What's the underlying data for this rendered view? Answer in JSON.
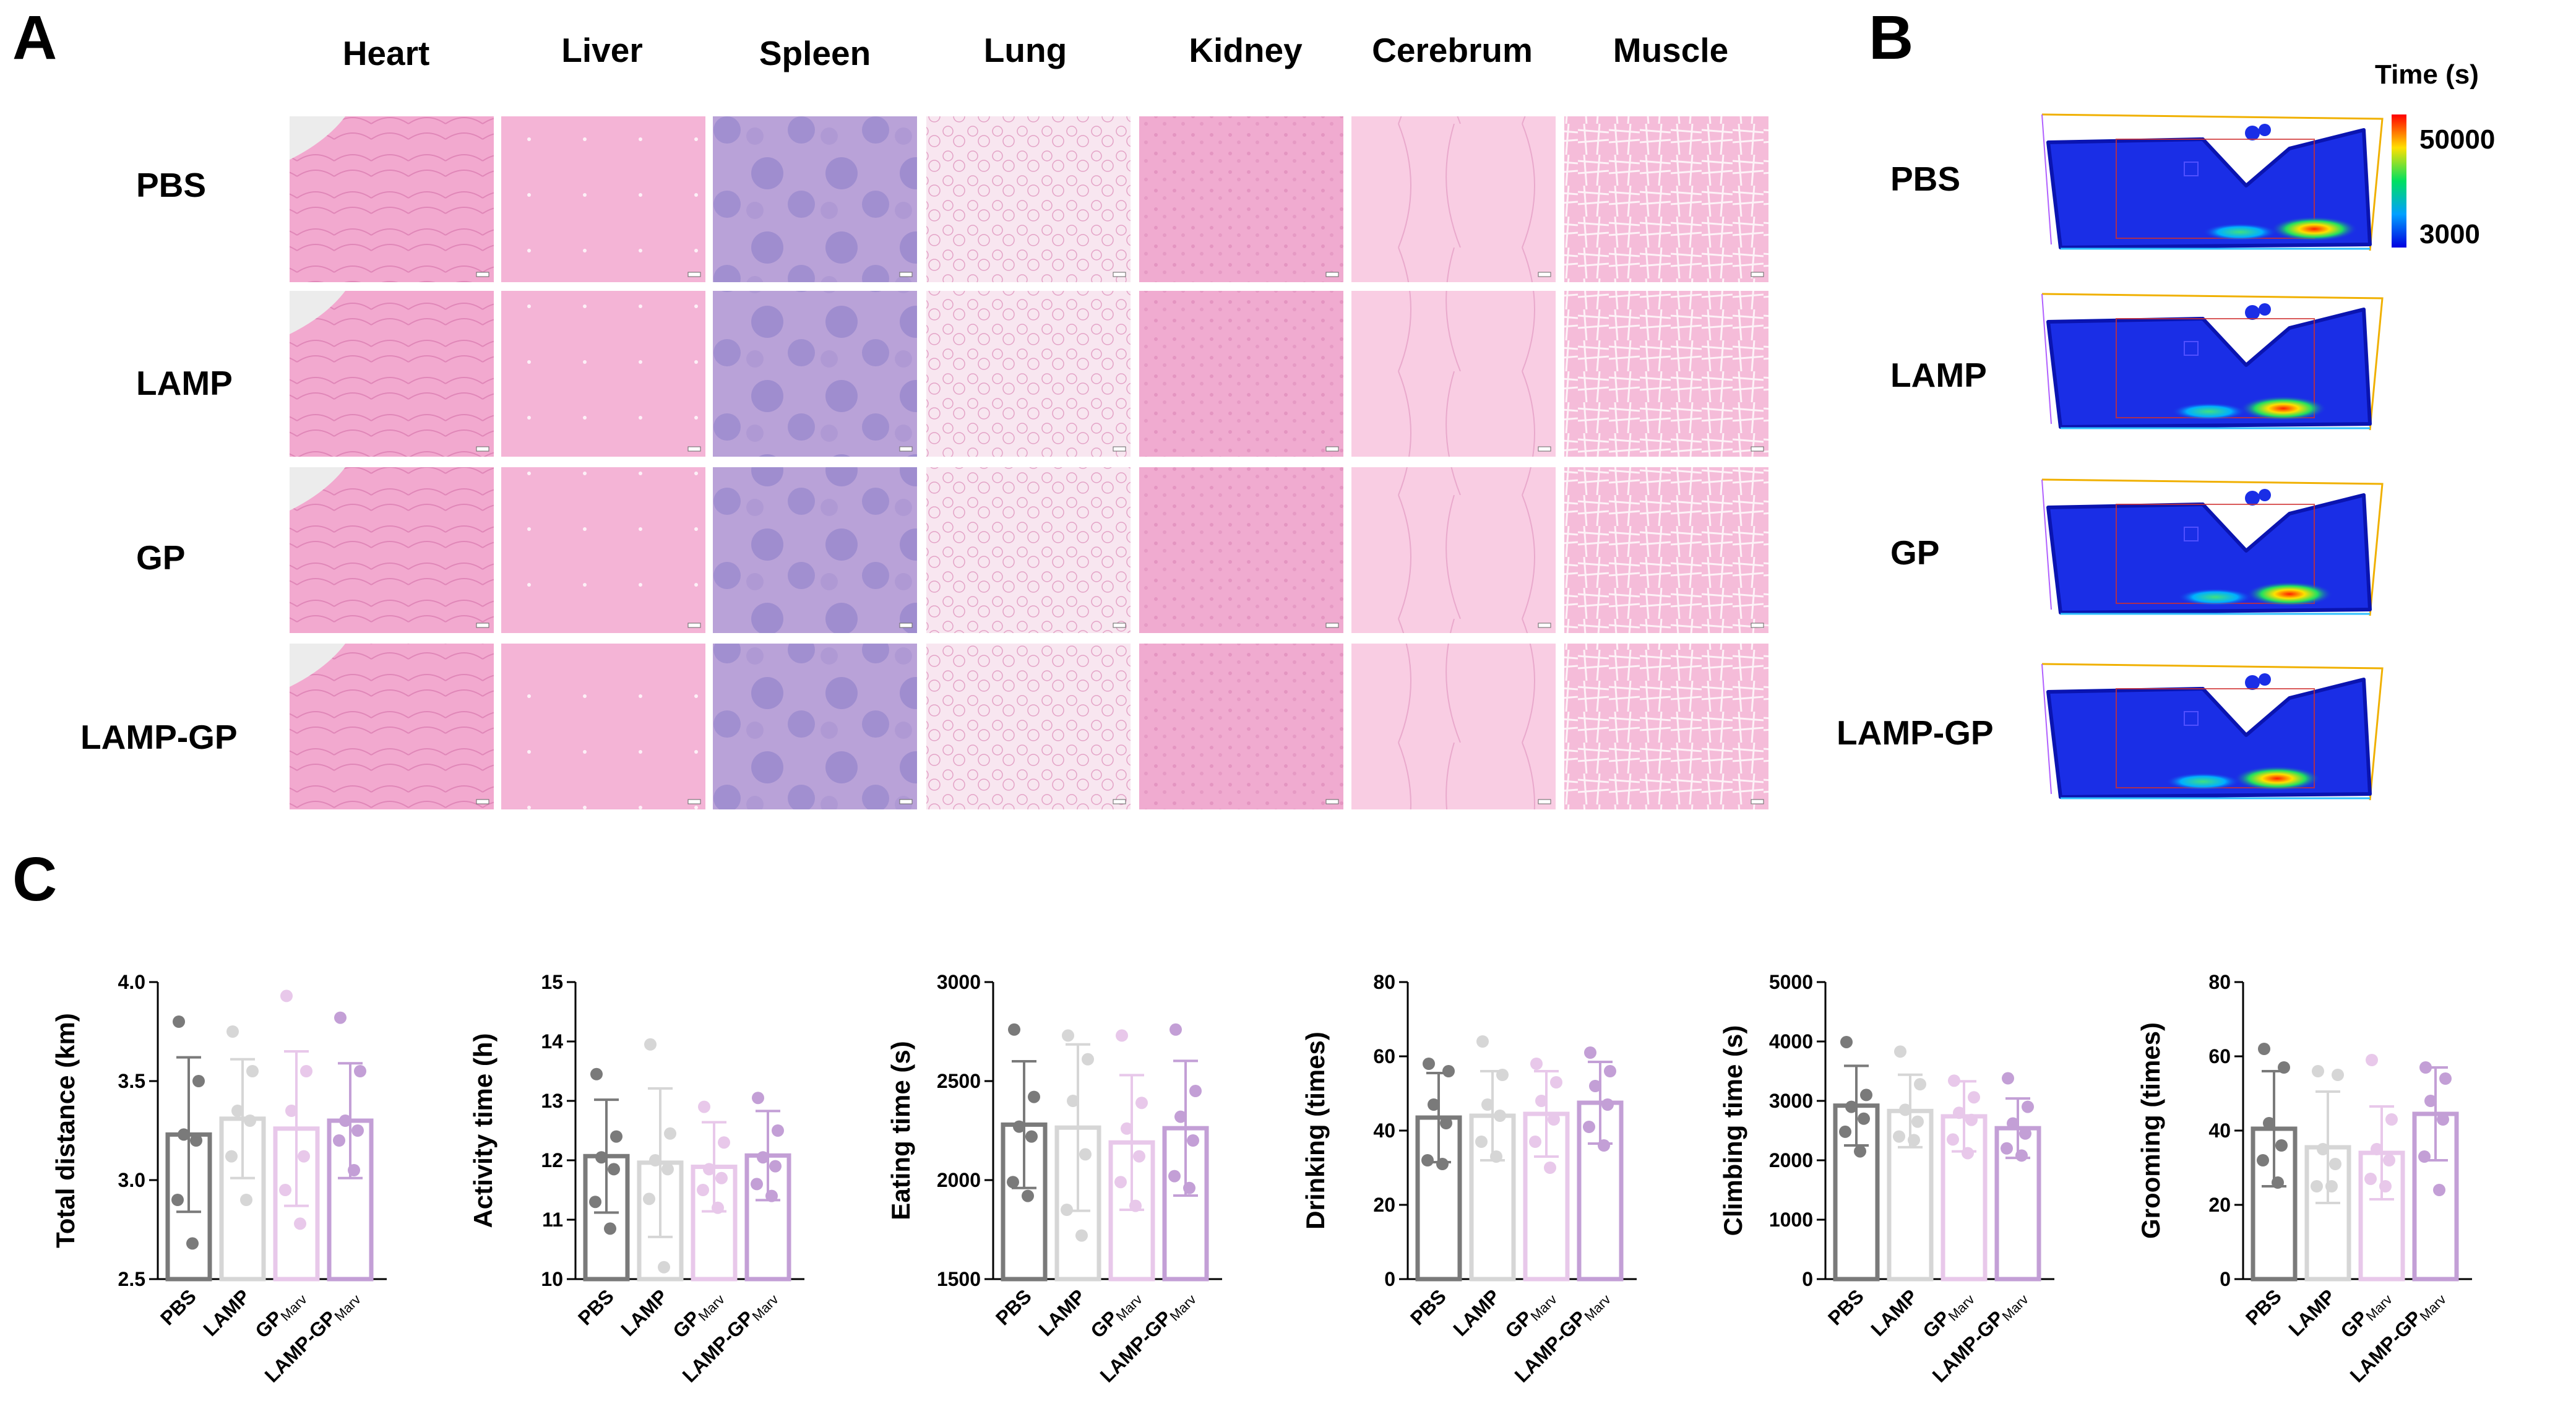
{
  "panel_a": {
    "letter": "A",
    "tissues": [
      "Heart",
      "Liver",
      "Spleen",
      "Lung",
      "Kidney",
      "Cerebrum",
      "Muscle"
    ],
    "groups": [
      "PBS",
      "LAMP",
      "GP",
      "LAMP-GP"
    ]
  },
  "panel_b": {
    "letter": "B",
    "colorbar_title": "Time (s)",
    "colorbar_max": "50000",
    "colorbar_min": "3000",
    "groups": [
      "PBS",
      "LAMP",
      "GP",
      "LAMP-GP"
    ]
  },
  "panel_c": {
    "letter": "C",
    "categories": [
      {
        "main": "PBS",
        "sub": ""
      },
      {
        "main": "LAMP",
        "sub": ""
      },
      {
        "main": "GP",
        "sub": "Marv"
      },
      {
        "main": "LAMP-GP",
        "sub": "Marv"
      }
    ]
  },
  "colors": {
    "series": [
      "#7a7a7a",
      "#d6d6d6",
      "#e8c8ea",
      "#c39fd6"
    ],
    "heart": "#f2a9cf",
    "liver": "#f4b4d6",
    "spleen": "#b9a2d8",
    "lung": "#f8e6f0",
    "kidney": "#f0abd0",
    "cerebrum": "#f9cde3",
    "muscle": "#f5bcd9",
    "heatmap_blue": "#1a2ee6"
  },
  "chart_data": [
    {
      "type": "bar",
      "title": "",
      "xlabel": "",
      "ylabel": "Total distance (km)",
      "categories": [
        "PBS",
        "LAMP",
        "GPMarv",
        "LAMP-GPMarv"
      ],
      "values": [
        3.23,
        3.31,
        3.26,
        3.3
      ],
      "errors": [
        0.39,
        0.3,
        0.39,
        0.29
      ],
      "points": [
        [
          3.8,
          3.5,
          3.23,
          3.2,
          2.9,
          2.68
        ],
        [
          3.75,
          3.55,
          3.35,
          3.3,
          3.12,
          2.9
        ],
        [
          3.93,
          3.55,
          3.35,
          3.12,
          2.95,
          2.78
        ],
        [
          3.82,
          3.55,
          3.3,
          3.25,
          3.2,
          3.05
        ]
      ],
      "ylim": [
        2.5,
        4.0
      ],
      "yticks": [
        2.5,
        3.0,
        3.5,
        4.0
      ],
      "ytick_labels": [
        "2.5",
        "3.0",
        "3.5",
        "4.0"
      ]
    },
    {
      "type": "bar",
      "title": "",
      "xlabel": "",
      "ylabel": "Activity time (h)",
      "categories": [
        "PBS",
        "LAMP",
        "GPMarv",
        "LAMP-GPMarv"
      ],
      "values": [
        12.07,
        11.96,
        11.89,
        12.08
      ],
      "errors": [
        0.95,
        1.25,
        0.75,
        0.75
      ],
      "points": [
        [
          13.45,
          12.4,
          12.05,
          11.85,
          11.3,
          10.85
        ],
        [
          13.95,
          12.45,
          12.0,
          11.85,
          11.35,
          10.2
        ],
        [
          12.9,
          12.3,
          11.85,
          11.7,
          11.5,
          11.2
        ],
        [
          13.05,
          12.5,
          12.05,
          11.9,
          11.6,
          11.4
        ]
      ],
      "ylim": [
        10,
        15
      ],
      "yticks": [
        10,
        11,
        12,
        13,
        14,
        15
      ],
      "ytick_labels": [
        "10",
        "11",
        "12",
        "13",
        "14",
        "15"
      ]
    },
    {
      "type": "bar",
      "title": "",
      "xlabel": "",
      "ylabel": "Eating time (s)",
      "categories": [
        "PBS",
        "LAMP",
        "GPMarv",
        "LAMP-GPMarv"
      ],
      "values": [
        2280,
        2265,
        2190,
        2262
      ],
      "errors": [
        320,
        420,
        340,
        340
      ],
      "points": [
        [
          2760,
          2420,
          2270,
          2220,
          1990,
          1920
        ],
        [
          2730,
          2610,
          2400,
          2130,
          1850,
          1720
        ],
        [
          2730,
          2390,
          2260,
          2120,
          1990,
          1870
        ],
        [
          2760,
          2450,
          2320,
          2200,
          2020,
          1960
        ]
      ],
      "ylim": [
        1500,
        3000
      ],
      "yticks": [
        1500,
        2000,
        2500,
        3000
      ],
      "ytick_labels": [
        "1500",
        "2000",
        "2500",
        "3000"
      ]
    },
    {
      "type": "bar",
      "title": "",
      "xlabel": "",
      "ylabel": "Drinking (times)",
      "categories": [
        "PBS",
        "LAMP",
        "GPMarv",
        "LAMP-GPMarv"
      ],
      "values": [
        43.5,
        44.0,
        44.5,
        47.5
      ],
      "errors": [
        12.0,
        12.0,
        11.5,
        11.0
      ],
      "points": [
        [
          58,
          56,
          47,
          42,
          32,
          31
        ],
        [
          64,
          55,
          47,
          44,
          37,
          33
        ],
        [
          58,
          53,
          48,
          43,
          37,
          30
        ],
        [
          61,
          56,
          52,
          47,
          41,
          36
        ]
      ],
      "ylim": [
        0,
        80
      ],
      "yticks": [
        0,
        20,
        40,
        60,
        80
      ],
      "ytick_labels": [
        "0",
        "20",
        "40",
        "60",
        "80"
      ]
    },
    {
      "type": "bar",
      "title": "",
      "xlabel": "",
      "ylabel": "Climbing time (s)",
      "categories": [
        "PBS",
        "LAMP",
        "GPMarv",
        "LAMP-GPMarv"
      ],
      "values": [
        2920,
        2830,
        2740,
        2540
      ],
      "errors": [
        670,
        610,
        590,
        500
      ],
      "points": [
        [
          3990,
          3100,
          2900,
          2700,
          2480,
          2150
        ],
        [
          3830,
          3280,
          2850,
          2650,
          2400,
          2340
        ],
        [
          3340,
          3060,
          2800,
          2680,
          2350,
          2120
        ],
        [
          3380,
          2900,
          2620,
          2450,
          2200,
          2080
        ]
      ],
      "ylim": [
        0,
        5000
      ],
      "yticks": [
        0,
        1000,
        2000,
        3000,
        4000,
        5000
      ],
      "ytick_labels": [
        "0",
        "1000",
        "2000",
        "3000",
        "4000",
        "5000"
      ]
    },
    {
      "type": "bar",
      "title": "",
      "xlabel": "",
      "ylabel": "Grooming (times)",
      "categories": [
        "PBS",
        "LAMP",
        "GPMarv",
        "LAMP-GPMarv"
      ],
      "values": [
        40.5,
        35.5,
        34.0,
        44.5
      ],
      "errors": [
        15.5,
        15.0,
        12.5,
        12.5
      ],
      "points": [
        [
          62,
          57,
          42,
          36,
          32,
          26
        ],
        [
          56,
          55,
          35,
          31,
          25,
          25
        ],
        [
          59,
          43,
          35,
          32,
          27,
          25
        ],
        [
          57,
          54,
          48,
          43,
          33,
          24
        ]
      ],
      "ylim": [
        0,
        80
      ],
      "yticks": [
        0,
        20,
        40,
        60,
        80
      ],
      "ytick_labels": [
        "0",
        "20",
        "40",
        "60",
        "80"
      ]
    }
  ]
}
